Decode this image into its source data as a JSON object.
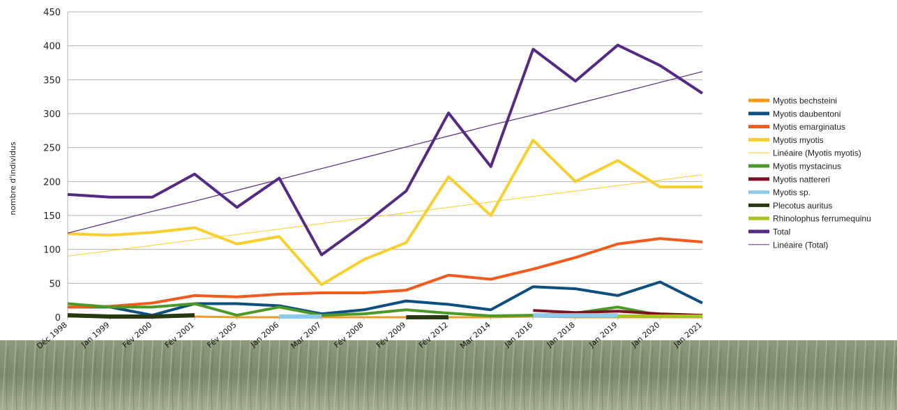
{
  "chart_data": {
    "type": "line",
    "title": "",
    "xlabel": "",
    "ylabel": "nombre d'individus",
    "ylim": [
      0,
      450
    ],
    "yticks": [
      0,
      50,
      100,
      150,
      200,
      250,
      300,
      350,
      400,
      450
    ],
    "grid": true,
    "legend_position": "right",
    "categories": [
      "Déc 1998",
      "Jan 1999",
      "Fév 2000",
      "Fév 2001",
      "Fév 2005",
      "Jan 2006",
      "Mar 2007",
      "Fév 2008",
      "Fév 2009",
      "Fév 2012",
      "Mar 2014",
      "Jan 2016",
      "Jan 2018",
      "Jan 2019",
      "Jan 2020",
      "Jan 2021"
    ],
    "series": [
      {
        "name": "Myotis bechsteini",
        "color": "#f39a1e",
        "width": 3,
        "values": [
          1,
          1,
          0,
          1,
          0,
          0,
          0,
          0,
          0,
          0,
          0,
          1,
          0,
          0,
          0,
          0
        ]
      },
      {
        "name": "Myotis daubentoni",
        "color": "#0d4f7f",
        "width": 4,
        "values": [
          15,
          15,
          3,
          20,
          20,
          17,
          5,
          11,
          24,
          19,
          11,
          45,
          42,
          32,
          52,
          21
        ]
      },
      {
        "name": "Myotis emarginatus",
        "color": "#f25a1e",
        "width": 4,
        "values": [
          15,
          16,
          21,
          32,
          30,
          34,
          36,
          36,
          40,
          62,
          56,
          71,
          88,
          108,
          116,
          111
        ]
      },
      {
        "name": "Myotis myotis",
        "color": "#f8cf2c",
        "width": 4,
        "values": [
          123,
          121,
          125,
          132,
          108,
          119,
          48,
          85,
          110,
          207,
          150,
          261,
          200,
          231,
          192,
          192
        ]
      },
      {
        "name": "Linéaire (Myotis myotis)",
        "color": "#f8cf2c",
        "width": 1,
        "trend": true,
        "values": [
          90,
          98,
          106,
          114,
          122,
          130,
          138,
          146,
          154,
          162,
          170,
          178,
          186,
          194,
          202,
          210
        ]
      },
      {
        "name": "Myotis mystacinus",
        "color": "#4b9a28",
        "width": 4,
        "values": [
          20,
          15,
          15,
          20,
          3,
          15,
          3,
          5,
          11,
          6,
          2,
          3,
          6,
          15,
          3,
          2
        ]
      },
      {
        "name": "Myotis nattereri",
        "color": "#7d1125",
        "width": 4,
        "values": [
          null,
          null,
          10,
          null,
          null,
          null,
          null,
          null,
          null,
          null,
          null,
          10,
          7,
          9,
          5,
          3
        ]
      },
      {
        "name": "Myotis sp.",
        "color": "#8ccbef",
        "width": 6,
        "values": [
          null,
          null,
          null,
          null,
          null,
          1,
          1,
          null,
          null,
          null,
          null,
          3,
          3,
          3,
          null,
          null
        ]
      },
      {
        "name": "Plecotus auritus",
        "color": "#283a10",
        "width": 6,
        "values": [
          3,
          1,
          1,
          3,
          null,
          null,
          null,
          null,
          0,
          0,
          null,
          null,
          null,
          null,
          null,
          null
        ]
      },
      {
        "name": "Rhinolophus ferrumequinum",
        "color": "#a6c51c",
        "width": 4,
        "values": [
          null,
          null,
          null,
          null,
          null,
          null,
          null,
          null,
          null,
          null,
          null,
          null,
          null,
          2,
          2,
          2
        ]
      },
      {
        "name": "Total",
        "color": "#542a83",
        "width": 4,
        "values": [
          181,
          177,
          177,
          211,
          162,
          205,
          92,
          137,
          186,
          301,
          222,
          395,
          348,
          401,
          371,
          330
        ]
      },
      {
        "name": "Linéaire (Total)",
        "color": "#542a83",
        "width": 1.2,
        "trend": true,
        "values": [
          124,
          140,
          156,
          171,
          187,
          203,
          219,
          235,
          251,
          267,
          283,
          298,
          314,
          330,
          346,
          362
        ]
      }
    ],
    "legend_label": "Rhinolophus ferrumequinu"
  }
}
